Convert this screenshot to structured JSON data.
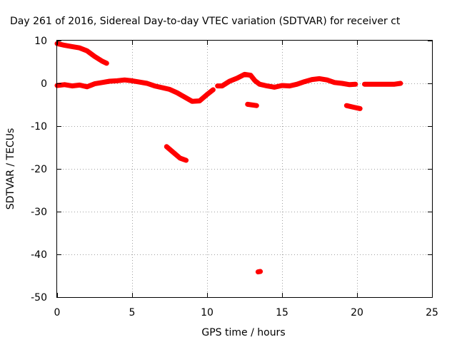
{
  "chart_data": {
    "type": "scatter",
    "title": "Day 261 of 2016, Sidereal Day-to-day VTEC variation (SDTVAR) for receiver ct",
    "xlabel": "GPS time / hours",
    "ylabel": "SDTVAR / TECUs",
    "xlim": [
      0,
      25
    ],
    "ylim": [
      -50,
      10
    ],
    "xticks": [
      0,
      5,
      10,
      15,
      20,
      25
    ],
    "yticks": [
      10,
      0,
      -10,
      -20,
      -30,
      -40,
      -50
    ],
    "grid": true,
    "series_color": "#ff0000",
    "series": [
      {
        "name": "segment-1",
        "points": [
          [
            0.0,
            9.3
          ],
          [
            0.5,
            8.9
          ],
          [
            1.0,
            8.6
          ],
          [
            1.5,
            8.3
          ],
          [
            2.0,
            7.6
          ],
          [
            2.5,
            6.3
          ],
          [
            3.0,
            5.2
          ],
          [
            3.3,
            4.7
          ]
        ]
      },
      {
        "name": "segment-2",
        "points": [
          [
            0.0,
            -0.5
          ],
          [
            0.5,
            -0.3
          ],
          [
            1.0,
            -0.6
          ],
          [
            1.5,
            -0.4
          ],
          [
            2.0,
            -0.8
          ],
          [
            2.5,
            -0.1
          ],
          [
            3.0,
            0.2
          ],
          [
            3.5,
            0.5
          ],
          [
            4.0,
            0.6
          ],
          [
            4.5,
            0.8
          ],
          [
            5.0,
            0.6
          ],
          [
            5.5,
            0.3
          ],
          [
            6.0,
            0.0
          ],
          [
            6.5,
            -0.6
          ],
          [
            7.0,
            -1.0
          ],
          [
            7.5,
            -1.4
          ],
          [
            8.0,
            -2.2
          ],
          [
            8.5,
            -3.2
          ],
          [
            9.0,
            -4.2
          ],
          [
            9.5,
            -4.1
          ],
          [
            10.0,
            -2.6
          ],
          [
            10.4,
            -1.5
          ]
        ]
      },
      {
        "name": "segment-3",
        "points": [
          [
            10.7,
            -0.6
          ],
          [
            11.0,
            -0.6
          ],
          [
            11.5,
            0.5
          ],
          [
            12.0,
            1.2
          ],
          [
            12.5,
            2.1
          ],
          [
            12.9,
            1.9
          ],
          [
            13.2,
            0.6
          ],
          [
            13.5,
            -0.2
          ],
          [
            14.0,
            -0.6
          ],
          [
            14.5,
            -0.9
          ],
          [
            15.0,
            -0.5
          ],
          [
            15.5,
            -0.6
          ],
          [
            16.0,
            -0.2
          ],
          [
            16.5,
            0.4
          ],
          [
            17.0,
            0.9
          ],
          [
            17.5,
            1.1
          ],
          [
            18.0,
            0.8
          ],
          [
            18.5,
            0.2
          ],
          [
            19.0,
            0.0
          ],
          [
            19.5,
            -0.3
          ],
          [
            19.9,
            -0.2
          ]
        ]
      },
      {
        "name": "segment-4",
        "points": [
          [
            20.5,
            -0.2
          ],
          [
            21.0,
            -0.2
          ],
          [
            21.5,
            -0.2
          ],
          [
            22.0,
            -0.2
          ],
          [
            22.5,
            -0.2
          ],
          [
            22.9,
            0.0
          ]
        ]
      },
      {
        "name": "segment-5",
        "points": [
          [
            7.3,
            -14.8
          ],
          [
            7.8,
            -16.3
          ],
          [
            8.2,
            -17.5
          ],
          [
            8.6,
            -18.0
          ]
        ]
      },
      {
        "name": "segment-6",
        "points": [
          [
            12.7,
            -4.9
          ],
          [
            13.3,
            -5.2
          ]
        ]
      },
      {
        "name": "segment-7",
        "points": [
          [
            19.3,
            -5.2
          ],
          [
            19.8,
            -5.6
          ],
          [
            20.2,
            -5.9
          ]
        ]
      },
      {
        "name": "segment-8",
        "points": [
          [
            13.4,
            -44.1
          ],
          [
            13.55,
            -44.0
          ]
        ]
      }
    ]
  }
}
